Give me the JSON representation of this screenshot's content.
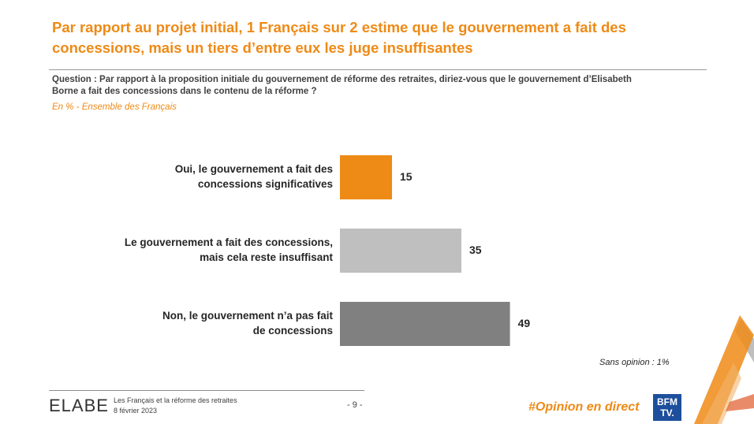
{
  "title_lines": [
    "Par rapport au projet initial, 1 Français sur 2 estime que le gouvernement a fait des",
    "concessions, mais un tiers d’entre eux les juge insuffisantes"
  ],
  "question_lines": [
    "Question : Par rapport à la proposition initiale du gouvernement de réforme des retraites, diriez-vous que le gouvernement d’Elisabeth",
    "Borne a fait des concessions dans le contenu de la réforme ?"
  ],
  "base": "En % - Ensemble des Français",
  "chart_data": {
    "type": "bar",
    "orientation": "horizontal",
    "categories": [
      [
        "Oui, le gouvernement a fait des",
        "concessions significatives"
      ],
      [
        "Le gouvernement a fait des concessions,",
        "mais cela reste insuffisant"
      ],
      [
        "Non, le gouvernement n’a pas fait",
        "de concessions"
      ]
    ],
    "values": [
      15,
      35,
      49
    ],
    "colors": [
      "#ee8a16",
      "#bfbfbf",
      "#808080"
    ],
    "unit": "%",
    "grid": false,
    "legend": "none"
  },
  "no_opinion": "Sans opinion : 1%",
  "footer": {
    "logo": "ELABE",
    "line1": "Les Français et la réforme des retraites",
    "line2": "8 février 2023",
    "page": "- 9 -",
    "hashtag": "#Opinion en direct",
    "bfm_line1": "BFM",
    "bfm_line2": "TV."
  }
}
